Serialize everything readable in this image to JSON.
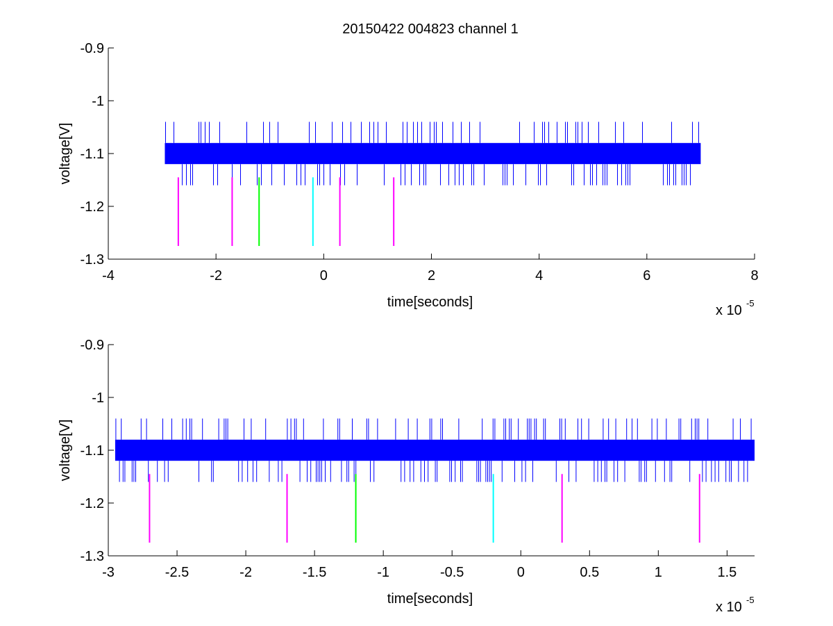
{
  "figure": {
    "title": "20150422 004823 channel 1",
    "background": "#ffffff"
  },
  "colors": {
    "signal": "#0000ff",
    "magenta": "#ff00ff",
    "green": "#00ff00",
    "cyan": "#00ffff",
    "axis": "#000000"
  },
  "chart_data": [
    {
      "type": "line",
      "title": "20150422 004823 channel 1",
      "xlabel": "time[seconds]",
      "ylabel": "voltage[V]",
      "x_multiplier": "x 10",
      "x_multiplier_exponent": "-5",
      "xlim": [
        -4e-05,
        8e-05
      ],
      "ylim": [
        -1.3,
        -0.9
      ],
      "xticks": [
        -4,
        -2,
        0,
        2,
        4,
        6,
        8
      ],
      "xtick_labels": [
        "-4",
        "-2",
        "0",
        "2",
        "4",
        "6",
        "8"
      ],
      "yticks": [
        -0.9,
        -1,
        -1.1,
        -1.2,
        -1.3
      ],
      "ytick_labels": [
        "-0.9",
        "-1",
        "-1.1",
        "-1.2",
        "-1.3"
      ],
      "grid": false,
      "series": [
        {
          "color": "#0000ff",
          "x_range": [
            -2.95e-05,
            7e-05
          ],
          "band": [
            -1.12,
            -1.08
          ],
          "spike_range": [
            -1.16,
            -1.04
          ],
          "description": "noisy voltage trace oscillating around -1.1 V"
        }
      ],
      "markers": [
        {
          "x": -2.7e-05,
          "y_range": [
            -1.275,
            -1.145
          ],
          "color": "#ff00ff"
        },
        {
          "x": -1.7e-05,
          "y_range": [
            -1.275,
            -1.145
          ],
          "color": "#ff00ff"
        },
        {
          "x": -1.2e-05,
          "y_range": [
            -1.275,
            -1.145
          ],
          "color": "#00ff00"
        },
        {
          "x": -2e-06,
          "y_range": [
            -1.275,
            -1.145
          ],
          "color": "#00ffff"
        },
        {
          "x": 3e-06,
          "y_range": [
            -1.275,
            -1.145
          ],
          "color": "#ff00ff"
        },
        {
          "x": 1.3e-05,
          "y_range": [
            -1.275,
            -1.145
          ],
          "color": "#ff00ff"
        }
      ]
    },
    {
      "type": "line",
      "title": "",
      "xlabel": "time[seconds]",
      "ylabel": "voltage[V]",
      "x_multiplier": "x 10",
      "x_multiplier_exponent": "-5",
      "xlim": [
        -3e-05,
        1.7e-05
      ],
      "ylim": [
        -1.3,
        -0.9
      ],
      "xticks": [
        -3,
        -2.5,
        -2,
        -1.5,
        -1,
        -0.5,
        0,
        0.5,
        1,
        1.5
      ],
      "xtick_labels": [
        "-3",
        "-2.5",
        "-2",
        "-1.5",
        "-1",
        "-0.5",
        "0",
        "0.5",
        "1",
        "1.5"
      ],
      "yticks": [
        -0.9,
        -1,
        -1.1,
        -1.2,
        -1.3
      ],
      "ytick_labels": [
        "-0.9",
        "-1",
        "-1.1",
        "-1.2",
        "-1.3"
      ],
      "grid": false,
      "series": [
        {
          "color": "#0000ff",
          "x_range": [
            -2.95e-05,
            1.7e-05
          ],
          "band": [
            -1.12,
            -1.08
          ],
          "spike_range": [
            -1.16,
            -1.04
          ],
          "description": "noisy voltage trace oscillating around -1.1 V"
        }
      ],
      "markers": [
        {
          "x": -2.7e-05,
          "y_range": [
            -1.275,
            -1.145
          ],
          "color": "#ff00ff"
        },
        {
          "x": -1.7e-05,
          "y_range": [
            -1.275,
            -1.145
          ],
          "color": "#ff00ff"
        },
        {
          "x": -1.2e-05,
          "y_range": [
            -1.275,
            -1.145
          ],
          "color": "#00ff00"
        },
        {
          "x": -2e-06,
          "y_range": [
            -1.275,
            -1.145
          ],
          "color": "#00ffff"
        },
        {
          "x": 3e-06,
          "y_range": [
            -1.275,
            -1.145
          ],
          "color": "#ff00ff"
        },
        {
          "x": 1.3e-05,
          "y_range": [
            -1.275,
            -1.145
          ],
          "color": "#ff00ff"
        }
      ]
    }
  ]
}
